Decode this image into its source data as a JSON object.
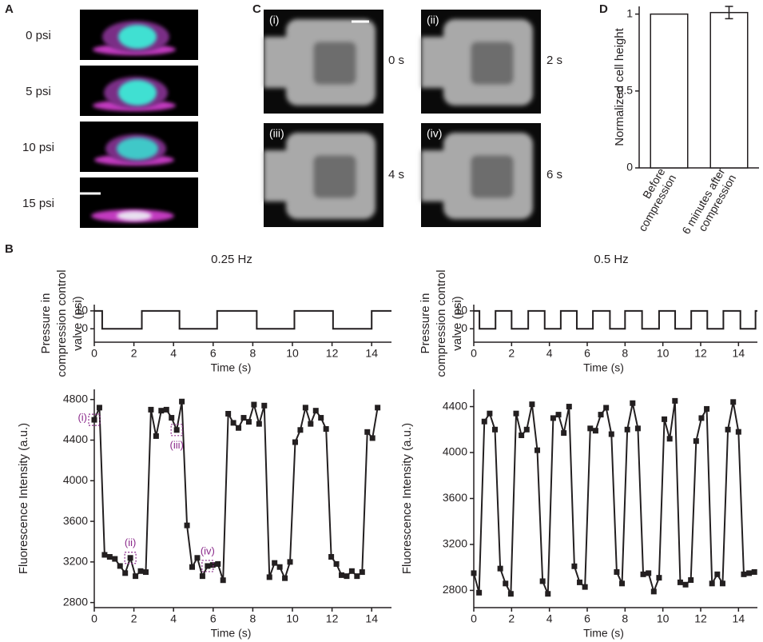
{
  "panel_labels": [
    "A",
    "B",
    "C",
    "D"
  ],
  "panel_a": {
    "labels": [
      "0 psi",
      "5 psi",
      "10 psi",
      "15 psi"
    ]
  },
  "panel_c": {
    "tags": [
      "(i)",
      "(ii)",
      "(iii)",
      "(iv)"
    ],
    "times": [
      "0 s",
      "2 s",
      "4 s",
      "6 s"
    ]
  },
  "chart_data": [
    {
      "type": "bar",
      "ylabel": "Normalized cell height",
      "categories": [
        [
          "Before",
          "compression"
        ],
        [
          "6 minutes after",
          "compression"
        ]
      ],
      "values": [
        1,
        1.01
      ],
      "errors": [
        null,
        0.04
      ],
      "color": "#ffffff",
      "edgecolor": "#231f20",
      "ylim": [
        0,
        1.05
      ],
      "yticks": [
        0,
        0.5,
        1
      ]
    },
    {
      "type": "line",
      "title": "0.25 Hz",
      "ylabel": [
        "Pressure in",
        "compression control",
        "valve (psi)"
      ],
      "xlabel": "Time (s)",
      "x": [
        0,
        0.4,
        0.4,
        2.4,
        2.4,
        4.3,
        4.3,
        6.2,
        6.2,
        8.2,
        8.2,
        10.1,
        10.1,
        12.05,
        12.05,
        14,
        14,
        15
      ],
      "values": [
        10,
        10,
        0,
        0,
        10,
        10,
        0,
        0,
        10,
        10,
        0,
        0,
        10,
        10,
        0,
        0,
        10,
        10
      ],
      "color": "#231f20",
      "markers": false,
      "xlim": [
        0,
        15
      ],
      "xticks": [
        0,
        2,
        4,
        6,
        8,
        10,
        12,
        14
      ],
      "ylim": [
        -7.5,
        13.5
      ],
      "yticks": [
        0,
        10
      ]
    },
    {
      "type": "line",
      "title": "0.5 Hz",
      "ylabel": [
        "Pressure in",
        "compression control",
        "valve (psi)"
      ],
      "xlabel": "Time (s)",
      "x": [
        0,
        0.3,
        0.3,
        1.15,
        1.15,
        2.0,
        2.0,
        2.88,
        2.88,
        3.75,
        3.75,
        4.6,
        4.6,
        5.45,
        5.45,
        6.3,
        6.3,
        7.2,
        7.2,
        8.0,
        8.0,
        8.9,
        8.9,
        9.8,
        9.8,
        10.65,
        10.65,
        11.5,
        11.5,
        12.35,
        12.35,
        13.2,
        13.2,
        14.1,
        14.1,
        14.9,
        14.9,
        15
      ],
      "values": [
        10,
        10,
        0,
        0,
        10,
        10,
        0,
        0,
        10,
        10,
        0,
        0,
        10,
        10,
        0,
        0,
        10,
        10,
        0,
        0,
        10,
        10,
        0,
        0,
        10,
        10,
        0,
        0,
        10,
        10,
        0,
        0,
        10,
        10,
        0,
        0,
        10,
        10
      ],
      "color": "#231f20",
      "markers": false,
      "xlim": [
        0,
        15
      ],
      "xticks": [
        0,
        2,
        4,
        6,
        8,
        10,
        12,
        14
      ],
      "ylim": [
        -7.5,
        13.5
      ],
      "yticks": [
        0,
        10
      ]
    },
    {
      "type": "line",
      "ylabel": "Fluorescence Intensity (a.u.)",
      "xlabel": "Time (s)",
      "x": [
        0,
        0.26,
        0.52,
        0.78,
        1.04,
        1.3,
        1.56,
        1.82,
        2.08,
        2.34,
        2.6,
        2.86,
        3.12,
        3.38,
        3.64,
        3.9,
        4.16,
        4.42,
        4.68,
        4.94,
        5.2,
        5.46,
        5.72,
        5.98,
        6.24,
        6.5,
        6.76,
        7.02,
        7.28,
        7.54,
        7.8,
        8.06,
        8.32,
        8.58,
        8.84,
        9.1,
        9.36,
        9.62,
        9.88,
        10.14,
        10.4,
        10.66,
        10.92,
        11.18,
        11.44,
        11.7,
        11.96,
        12.22,
        12.48,
        12.74,
        13.0,
        13.26,
        13.52,
        13.78,
        14.04,
        14.3
      ],
      "values": [
        4600,
        4720,
        3270,
        3250,
        3230,
        3160,
        3090,
        3240,
        3060,
        3110,
        3100,
        4700,
        4440,
        4690,
        4700,
        4620,
        4500,
        4780,
        3560,
        3150,
        3240,
        3060,
        3160,
        3170,
        3180,
        3020,
        4660,
        4570,
        4520,
        4620,
        4580,
        4750,
        4560,
        4740,
        3050,
        3190,
        3150,
        3040,
        3200,
        4380,
        4500,
        4720,
        4560,
        4690,
        4620,
        4510,
        3250,
        3180,
        3070,
        3060,
        3110,
        3060,
        3100,
        4480,
        4420,
        4720
      ],
      "color": "#231f20",
      "markers": true,
      "xlim": [
        0,
        15
      ],
      "xticks": [
        0,
        2,
        4,
        6,
        8,
        10,
        12,
        14
      ],
      "ylim": [
        2750,
        4900
      ],
      "yticks": [
        2800,
        3200,
        3600,
        4000,
        4400,
        4800
      ],
      "annotations": [
        {
          "text": "(i)",
          "x": 0,
          "y": 4600
        },
        {
          "text": "(ii)",
          "x": 1.82,
          "y": 3240
        },
        {
          "text": "(iii)",
          "x": 4.16,
          "y": 4500
        },
        {
          "text": "(iv)",
          "x": 5.72,
          "y": 3160
        }
      ]
    },
    {
      "type": "line",
      "ylabel": "Fluorescence Intensity (a.u.)",
      "xlabel": "Time (s)",
      "x": [
        0,
        0.28,
        0.56,
        0.84,
        1.12,
        1.4,
        1.68,
        1.96,
        2.24,
        2.52,
        2.8,
        3.08,
        3.36,
        3.64,
        3.92,
        4.2,
        4.48,
        4.76,
        5.04,
        5.32,
        5.6,
        5.88,
        6.16,
        6.44,
        6.72,
        7.0,
        7.28,
        7.56,
        7.84,
        8.12,
        8.4,
        8.68,
        8.96,
        9.24,
        9.52,
        9.8,
        10.08,
        10.36,
        10.64,
        10.92,
        11.2,
        11.48,
        11.76,
        12.04,
        12.32,
        12.6,
        12.88,
        13.16,
        13.44,
        13.72,
        14.0,
        14.28,
        14.56,
        14.84
      ],
      "values": [
        2950,
        2780,
        4270,
        4340,
        4200,
        2990,
        2860,
        2770,
        4340,
        4150,
        4200,
        4420,
        4020,
        2880,
        2770,
        4300,
        4330,
        4170,
        4400,
        3010,
        2870,
        2830,
        4210,
        4190,
        4330,
        4390,
        4160,
        2960,
        2860,
        4200,
        4430,
        4210,
        2940,
        2950,
        2790,
        2910,
        4290,
        4120,
        4450,
        2870,
        2850,
        2890,
        4100,
        4300,
        4380,
        2860,
        2940,
        2860,
        4200,
        4440,
        4180,
        2940,
        2950,
        2960
      ],
      "color": "#231f20",
      "markers": true,
      "xlim": [
        0,
        15
      ],
      "xticks": [
        0,
        2,
        4,
        6,
        8,
        10,
        12,
        14
      ],
      "ylim": [
        2650,
        4550
      ],
      "yticks": [
        2800,
        3200,
        3600,
        4000,
        4400
      ]
    }
  ]
}
